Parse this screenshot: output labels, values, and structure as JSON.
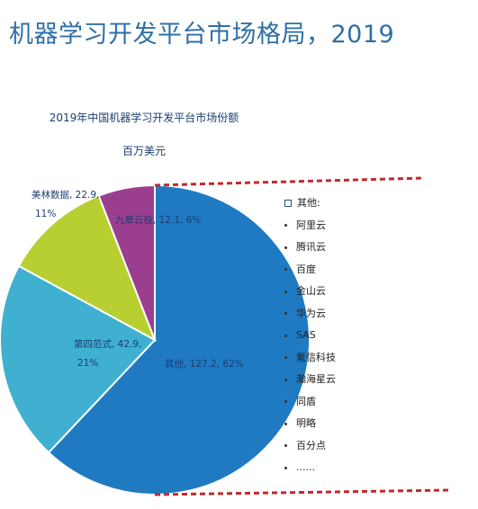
{
  "page": {
    "title": "机器学习开发平台市场格局，2019"
  },
  "chart_data": {
    "type": "pie",
    "title": "2019年中国机器学习开发平台市场份额",
    "subtitle": "百万美元",
    "start_angle_deg": 0,
    "direction": "clockwise",
    "slices": [
      {
        "name": "其他",
        "value": 127.2,
        "percent": 62,
        "label": "其他, 127.2, 62%",
        "color": "#1f7ac2"
      },
      {
        "name": "第四范式",
        "value": 42.9,
        "percent": 21,
        "label_lines": [
          "第四范式, 42.9,",
          "21%"
        ],
        "color": "#3fb0d0"
      },
      {
        "name": "美林数据",
        "value": 22.9,
        "percent": 11,
        "label_lines": [
          "美林数据, 22.9,",
          "11%"
        ],
        "color": "#b8cf31"
      },
      {
        "name": "九章云极",
        "value": 12.1,
        "percent": 6,
        "label": "九章云极, 12.1, 6%",
        "color": "#9c3e8f"
      }
    ],
    "legend": {
      "position": "right"
    }
  },
  "others_list": {
    "header": "其他:",
    "items": [
      "阿里云",
      "腾讯云",
      "百度",
      "金山云",
      "华为云",
      "SAS",
      "氪信科技",
      "瀚海星云",
      "同盾",
      "明略",
      "百分点",
      "......"
    ]
  },
  "colors": {
    "dashed_border": "#c0282d",
    "title": "#2f6fa6"
  }
}
